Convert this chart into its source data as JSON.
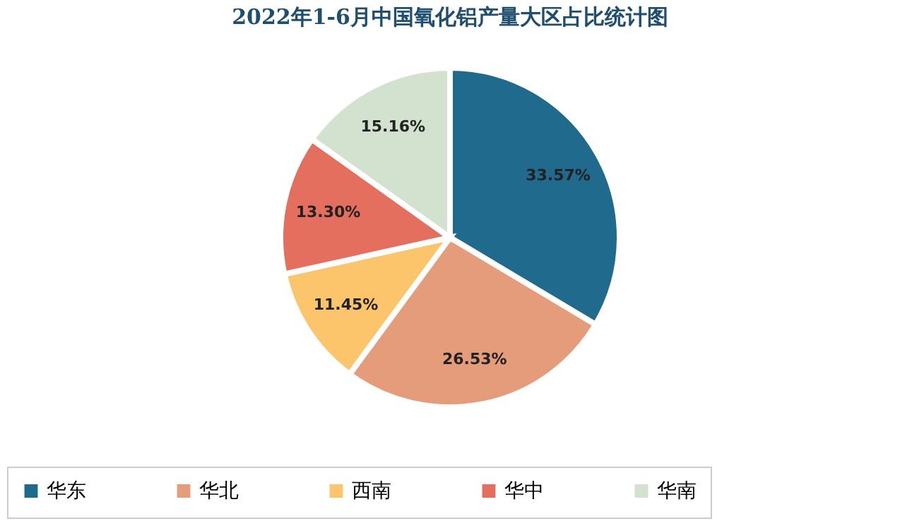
{
  "chart_data": {
    "type": "pie",
    "title": "2022年1-6月中国氧化铝产量大区占比统计图",
    "categories": [
      "华东",
      "华北",
      "西南",
      "华中",
      "华南"
    ],
    "values": [
      33.57,
      26.53,
      11.45,
      13.3,
      15.16
    ],
    "value_labels": [
      "33.57%",
      "26.53%",
      "11.45%",
      "13.30%",
      "15.16%"
    ],
    "colors": [
      "#1f6a8d",
      "#e59c7a",
      "#fcc56c",
      "#e46f5e",
      "#d3e2cf"
    ],
    "legend": "bottom"
  }
}
